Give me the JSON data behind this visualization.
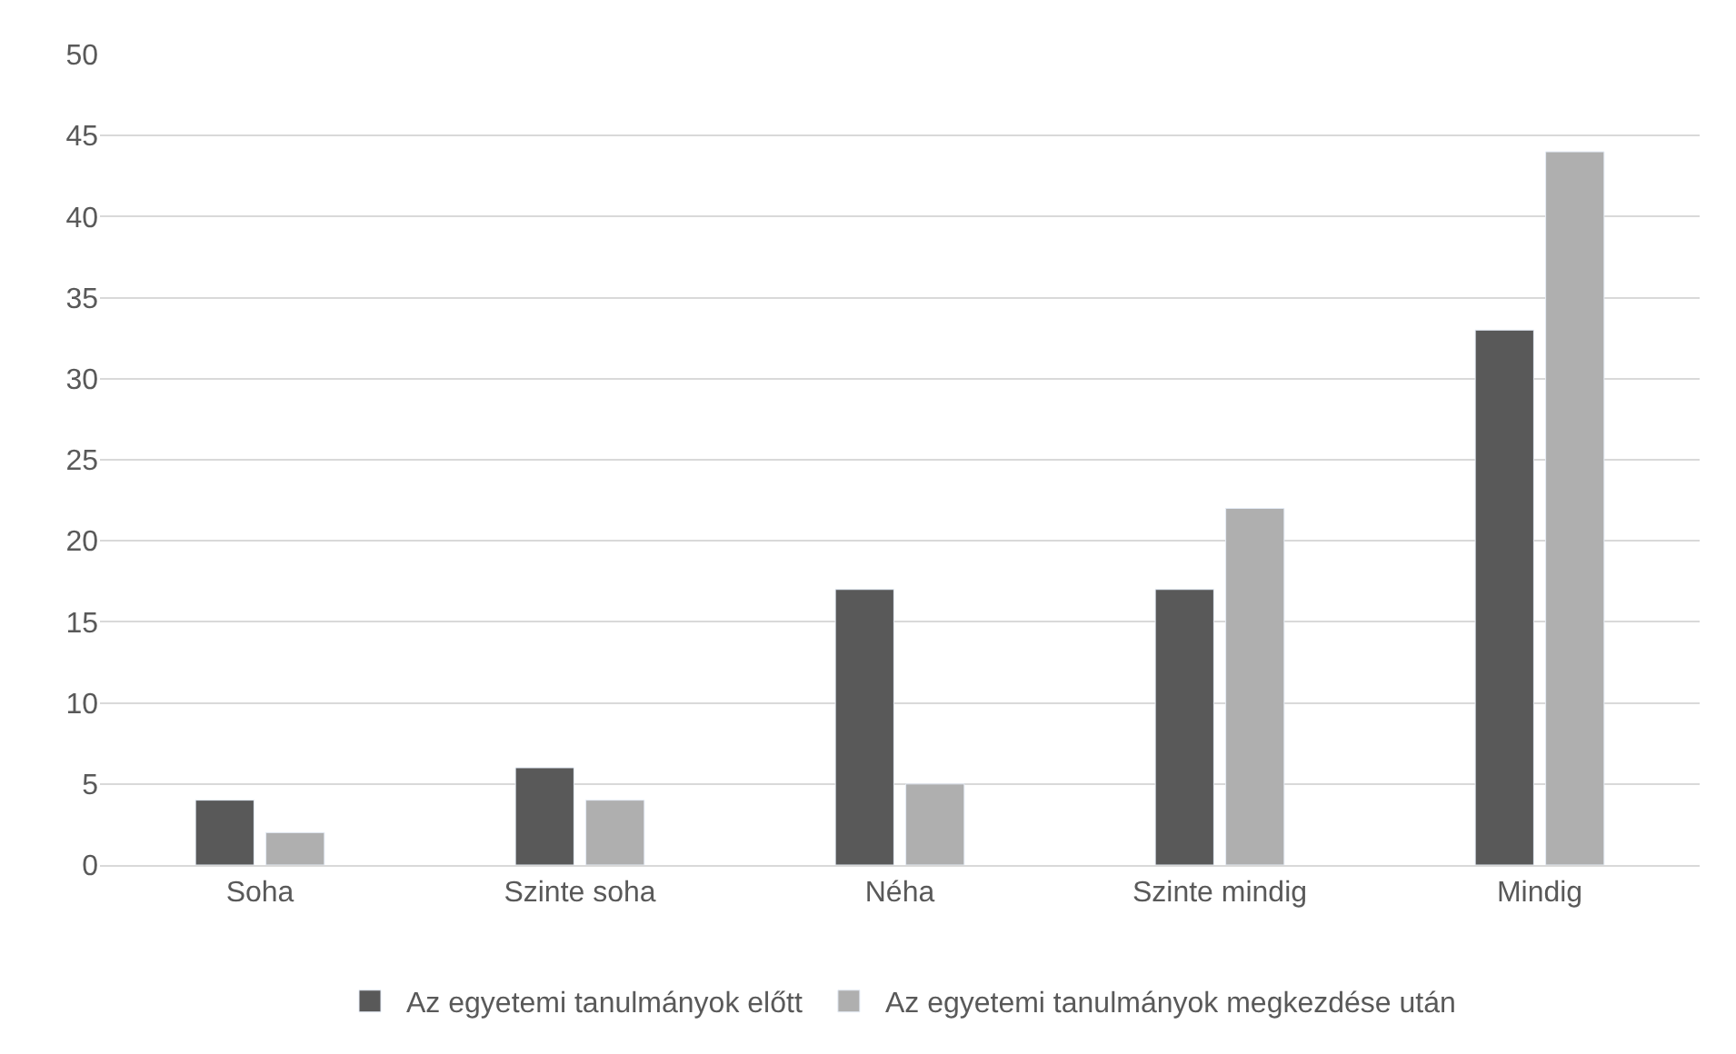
{
  "chart_data": {
    "type": "bar",
    "categories": [
      "Soha",
      "Szinte soha",
      "Néha",
      "Szinte mindig",
      "Mindig"
    ],
    "series": [
      {
        "name": "Az egyetemi tanulmányok előtt",
        "color": "#595959",
        "values": [
          4,
          6,
          17,
          17,
          33
        ]
      },
      {
        "name": "Az egyetemi tanulmányok megkezdése után",
        "color": "#afafaf",
        "values": [
          2,
          4,
          5,
          22,
          44
        ]
      }
    ],
    "ylim": [
      0,
      50
    ],
    "yticks": [
      0,
      5,
      10,
      15,
      20,
      25,
      30,
      35,
      40,
      45,
      50
    ],
    "grid": "y",
    "legend": "bottom"
  }
}
